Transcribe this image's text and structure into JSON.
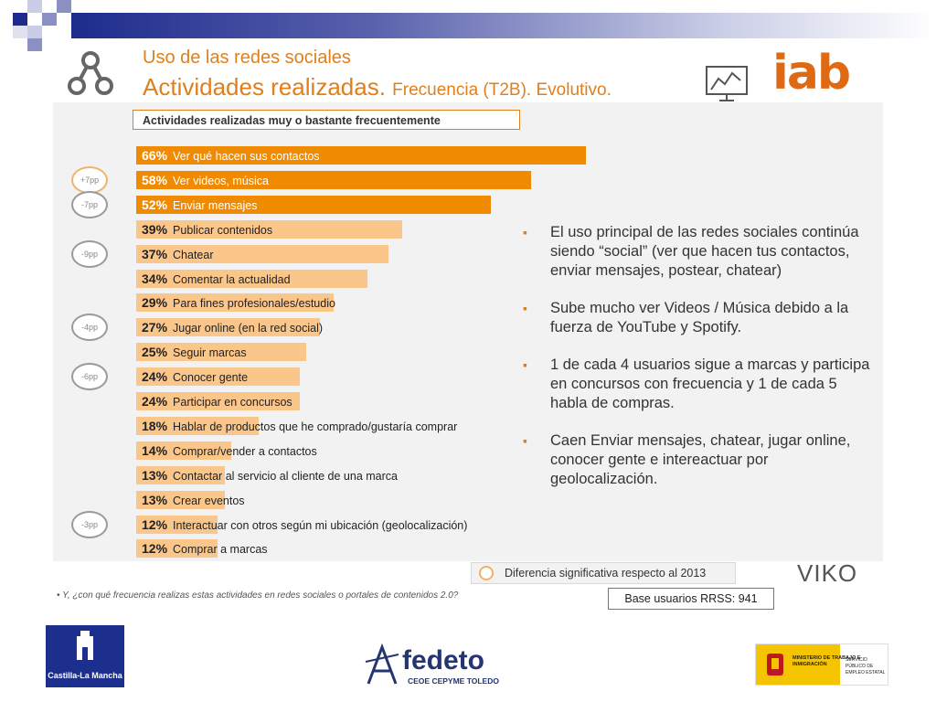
{
  "header": {
    "title_line1": "Uso de las redes sociales",
    "title_line2": "Actividades realizadas.",
    "title_line2_sub": "Frecuencia (T2B). Evolutivo.",
    "logo": "iab"
  },
  "chart_data": {
    "type": "bar",
    "orientation": "horizontal",
    "title": "Actividades realizadas muy o bastante frecuentemente",
    "unit": "%",
    "categories": [
      "Ver qué hacen sus contactos",
      "Ver videos, música",
      "Enviar mensajes",
      "Publicar contenidos",
      "Chatear",
      "Comentar la actualidad",
      "Para fines profesionales/estudio",
      "Jugar online (en la red social)",
      "Seguir marcas",
      "Conocer gente",
      "Participar en concursos",
      "Hablar de productos que he comprado/gustaría comprar",
      "Comprar/vender a contactos",
      "Contactar al servicio al cliente de una marca",
      "Crear eventos",
      "Interactuar con otros según mi ubicación (geolocalización)",
      "Comprar a marcas"
    ],
    "values": [
      66,
      58,
      52,
      39,
      37,
      34,
      29,
      27,
      25,
      24,
      24,
      18,
      14,
      13,
      13,
      12,
      12
    ],
    "labels": [
      "66%",
      "58%",
      "52%",
      "39%",
      "37%",
      "34%",
      "29%",
      "27%",
      "25%",
      "24%",
      "24%",
      "18%",
      "14%",
      "13%",
      "13%",
      "12%",
      "12%"
    ],
    "differences": [
      {
        "index": 1,
        "label": "+7pp",
        "direction": "up"
      },
      {
        "index": 2,
        "label": "-7pp",
        "direction": "down"
      },
      {
        "index": 4,
        "label": "-9pp",
        "direction": "down"
      },
      {
        "index": 7,
        "label": "-4pp",
        "direction": "down"
      },
      {
        "index": 9,
        "label": "-6pp",
        "direction": "down"
      },
      {
        "index": 15,
        "label": "-3pp",
        "direction": "down"
      }
    ],
    "colors": {
      "top": "#f08a00",
      "rest": "#fbc68a",
      "up": "#f2b26a",
      "down": "#9a9a9a"
    }
  },
  "bullets": [
    "El uso principal de las redes sociales continúa siendo “social” (ver que hacen tus contactos, enviar mensajes, postear, chatear)",
    "Sube mucho ver Videos / Música debido a la fuerza de YouTube y Spotify.",
    "1 de cada 4 usuarios sigue a marcas y participa en concursos con frecuencia y 1 de cada 5 habla de compras.",
    "Caen Enviar mensajes, chatear, jugar online, conocer gente e intereactuar por geolocalización."
  ],
  "legend": {
    "text": "Diferencia significativa respecto al 2013"
  },
  "base": {
    "text": "Base usuarios RRSS: 941"
  },
  "footnote": "•    Y, ¿con qué frecuencia realizas estas actividades en redes sociales o portales de contenidos 2.0?",
  "viko": "VIKO",
  "footer": {
    "clm": "Castilla-La Mancha",
    "fedeto": "fedeto",
    "fedeto_sub": "CEOE CEPYME TOLEDO",
    "ministerio": "MINISTERIO DE TRABAJO E INMIGRACIÓN",
    "servicio": "SERVICIO PÚBLICO DE EMPLEO ESTATAL"
  }
}
